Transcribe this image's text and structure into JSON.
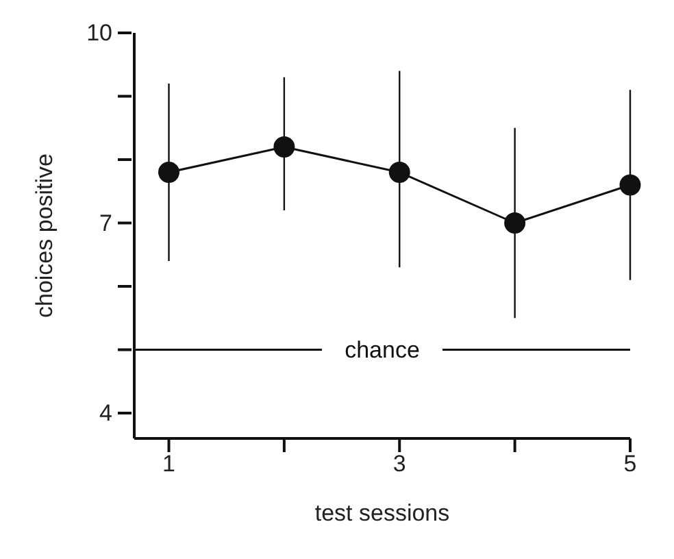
{
  "chart_data": {
    "type": "line",
    "xlabel": "test sessions",
    "ylabel": "choices positive",
    "x": [
      1,
      2,
      3,
      4,
      5
    ],
    "series": [
      {
        "color": "#111111",
        "values": [
          7.8,
          8.2,
          7.8,
          7.0,
          7.6
        ],
        "errors": [
          [
            6.4,
            9.2
          ],
          [
            7.2,
            9.3
          ],
          [
            6.3,
            9.4
          ],
          [
            5.5,
            8.5
          ],
          [
            6.1,
            9.1
          ]
        ]
      }
    ],
    "marker": "circle",
    "line_style": "solid",
    "xlim": [
      0.7,
      5
    ],
    "xticks": [
      1,
      {
        "value": 2,
        "label": null
      },
      3,
      {
        "value": 4,
        "label": null
      },
      5
    ],
    "ylim": [
      3.6,
      10
    ],
    "yticks": [
      {
        "value": 4,
        "label": "4"
      },
      {
        "value": 5,
        "label": null
      },
      {
        "value": 6,
        "label": null
      },
      7,
      {
        "value": 8,
        "label": null
      },
      {
        "value": 9,
        "label": null
      },
      10
    ],
    "ref_lines": [
      {
        "axis": "y",
        "value": 5,
        "label": "chance",
        "color": "#111111",
        "line_style": "solid"
      }
    ]
  }
}
